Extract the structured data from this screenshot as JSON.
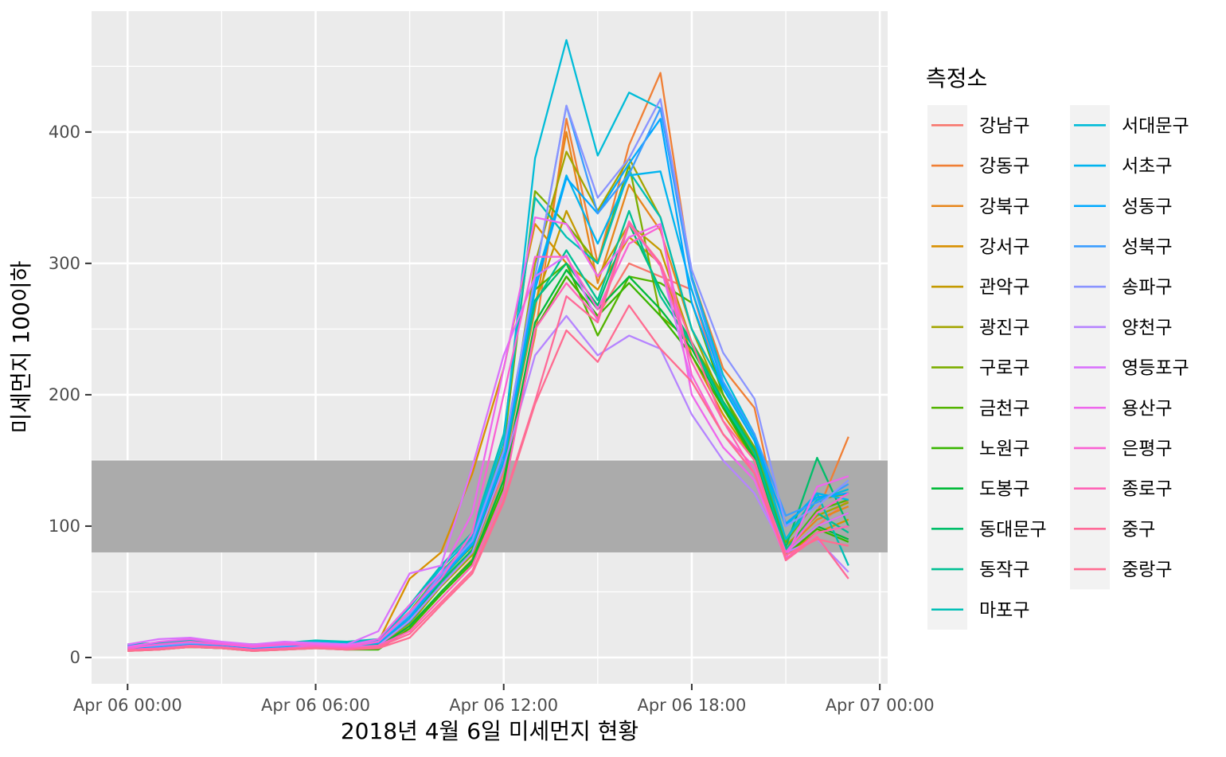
{
  "chart_data": {
    "type": "line",
    "title": "",
    "xlabel": "2018년 4월 6일 미세먼지 현황",
    "ylabel": "미세먼지 100이하",
    "ylim": [
      -20,
      492
    ],
    "xlim": [
      "2018-04-05 22:51",
      "2018-04-07 00:15"
    ],
    "x_ticks": [
      {
        "value": "2018-04-06 00:00",
        "label": "Apr 06 00:00"
      },
      {
        "value": "2018-04-06 06:00",
        "label": "Apr 06 06:00"
      },
      {
        "value": "2018-04-06 12:00",
        "label": "Apr 06 12:00"
      },
      {
        "value": "2018-04-06 18:00",
        "label": "Apr 06 18:00"
      },
      {
        "value": "2018-04-07 00:00",
        "label": "Apr 07 00:00"
      }
    ],
    "y_ticks": [
      0,
      100,
      200,
      300,
      400
    ],
    "band": {
      "ymin": 80,
      "ymax": 150,
      "color": "#ababab"
    },
    "grid": true,
    "legend_title": "측정소",
    "legend_position": "right",
    "x": [
      "2018-04-06 00:00",
      "2018-04-06 01:00",
      "2018-04-06 02:00",
      "2018-04-06 03:00",
      "2018-04-06 04:00",
      "2018-04-06 05:00",
      "2018-04-06 06:00",
      "2018-04-06 07:00",
      "2018-04-06 08:00",
      "2018-04-06 09:00",
      "2018-04-06 10:00",
      "2018-04-06 11:00",
      "2018-04-06 12:00",
      "2018-04-06 13:00",
      "2018-04-06 14:00",
      "2018-04-06 15:00",
      "2018-04-06 16:00",
      "2018-04-06 17:00",
      "2018-04-06 18:00",
      "2018-04-06 19:00",
      "2018-04-06 20:00",
      "2018-04-06 21:00",
      "2018-04-06 22:00",
      "2018-04-06 23:00"
    ],
    "series": [
      {
        "name": "강남구",
        "color": "#F8766D",
        "values": [
          7,
          8,
          10,
          9,
          7,
          8,
          9,
          8,
          10,
          25,
          55,
          80,
          140,
          250,
          290,
          260,
          300,
          290,
          280,
          200,
          160,
          80,
          100,
          120
        ]
      },
      {
        "name": "강동구",
        "color": "#F07F35",
        "values": [
          6,
          7,
          8,
          7,
          6,
          7,
          8,
          7,
          9,
          22,
          50,
          75,
          135,
          245,
          410,
          300,
          390,
          445,
          290,
          220,
          190,
          80,
          110,
          168
        ]
      },
      {
        "name": "강북구",
        "color": "#E7861B",
        "values": [
          8,
          9,
          10,
          9,
          8,
          9,
          10,
          9,
          11,
          28,
          60,
          85,
          145,
          265,
          400,
          285,
          360,
          325,
          250,
          205,
          165,
          82,
          105,
          115
        ]
      },
      {
        "name": "강서구",
        "color": "#D89000",
        "values": [
          9,
          10,
          12,
          10,
          9,
          10,
          11,
          10,
          12,
          60,
          80,
          140,
          220,
          330,
          300,
          280,
          320,
          300,
          230,
          185,
          150,
          78,
          95,
          105
        ]
      },
      {
        "name": "관악구",
        "color": "#C49A00",
        "values": [
          7,
          8,
          9,
          8,
          7,
          8,
          9,
          8,
          10,
          30,
          58,
          82,
          150,
          270,
          340,
          290,
          330,
          310,
          240,
          190,
          155,
          80,
          100,
          110
        ]
      },
      {
        "name": "광진구",
        "color": "#A3A500",
        "values": [
          6,
          7,
          9,
          8,
          6,
          7,
          8,
          7,
          9,
          26,
          54,
          78,
          145,
          300,
          385,
          340,
          380,
          335,
          250,
          195,
          160,
          85,
          108,
          118
        ]
      },
      {
        "name": "구로구",
        "color": "#7CAE00",
        "values": [
          10,
          11,
          13,
          11,
          10,
          11,
          12,
          11,
          13,
          35,
          65,
          90,
          160,
          355,
          330,
          300,
          375,
          260,
          240,
          200,
          160,
          88,
          120,
          125
        ]
      },
      {
        "name": "금천구",
        "color": "#53B400",
        "values": [
          9,
          10,
          12,
          10,
          9,
          10,
          11,
          10,
          12,
          30,
          60,
          85,
          150,
          280,
          300,
          245,
          290,
          285,
          270,
          200,
          155,
          82,
          112,
          120
        ]
      },
      {
        "name": "노원구",
        "color": "#39B600",
        "values": [
          5,
          6,
          8,
          7,
          5,
          6,
          7,
          6,
          6,
          22,
          48,
          72,
          130,
          250,
          290,
          260,
          285,
          260,
          230,
          190,
          150,
          78,
          98,
          88
        ]
      },
      {
        "name": "도봉구",
        "color": "#00BA38",
        "values": [
          6,
          7,
          8,
          7,
          6,
          7,
          8,
          7,
          8,
          24,
          50,
          74,
          135,
          255,
          295,
          265,
          290,
          265,
          235,
          192,
          152,
          80,
          100,
          90
        ]
      },
      {
        "name": "동대문구",
        "color": "#00BE6A",
        "values": [
          8,
          9,
          10,
          9,
          8,
          9,
          10,
          9,
          11,
          28,
          58,
          82,
          148,
          272,
          300,
          268,
          330,
          280,
          240,
          195,
          158,
          84,
          152,
          100
        ]
      },
      {
        "name": "동작구",
        "color": "#00C094",
        "values": [
          7,
          8,
          10,
          8,
          7,
          8,
          9,
          8,
          10,
          27,
          56,
          80,
          146,
          270,
          310,
          272,
          340,
          275,
          238,
          193,
          156,
          82,
          110,
          95
        ]
      },
      {
        "name": "마포구",
        "color": "#00BFB6",
        "values": [
          10,
          11,
          13,
          11,
          10,
          11,
          13,
          12,
          14,
          40,
          70,
          95,
          170,
          350,
          320,
          300,
          370,
          335,
          250,
          205,
          165,
          90,
          125,
          70
        ]
      },
      {
        "name": "서대문구",
        "color": "#00BCD8",
        "values": [
          9,
          10,
          12,
          10,
          9,
          10,
          12,
          11,
          13,
          38,
          68,
          92,
          165,
          380,
          470,
          382,
          430,
          418,
          290,
          215,
          170,
          90,
          120,
          128
        ]
      },
      {
        "name": "서초구",
        "color": "#00B4EF",
        "values": [
          8,
          9,
          11,
          10,
          8,
          9,
          11,
          10,
          12,
          32,
          62,
          88,
          155,
          285,
          367,
          315,
          367,
          370,
          280,
          208,
          168,
          100,
          125,
          120
        ]
      },
      {
        "name": "성동구",
        "color": "#00A9FF",
        "values": [
          7,
          8,
          10,
          9,
          7,
          8,
          10,
          9,
          11,
          30,
          60,
          86,
          150,
          280,
          365,
          338,
          376,
          410,
          270,
          205,
          165,
          102,
          122,
          125
        ]
      },
      {
        "name": "성북구",
        "color": "#3B9DFF",
        "values": [
          9,
          10,
          11,
          10,
          9,
          10,
          11,
          10,
          12,
          34,
          64,
          90,
          158,
          290,
          420,
          338,
          368,
          418,
          288,
          210,
          170,
          108,
          118,
          132
        ]
      },
      {
        "name": "송파구",
        "color": "#8A94FF",
        "values": [
          8,
          9,
          11,
          10,
          8,
          9,
          11,
          10,
          12,
          33,
          63,
          89,
          157,
          290,
          420,
          350,
          380,
          425,
          295,
          232,
          197,
          100,
          115,
          135
        ]
      },
      {
        "name": "양천구",
        "color": "#B684FF",
        "values": [
          6,
          7,
          9,
          8,
          6,
          7,
          9,
          8,
          9,
          28,
          55,
          80,
          145,
          230,
          260,
          230,
          245,
          235,
          185,
          150,
          125,
          80,
          90,
          65
        ]
      },
      {
        "name": "영등포구",
        "color": "#D973FC",
        "values": [
          10,
          14,
          15,
          12,
          10,
          12,
          11,
          10,
          20,
          64,
          70,
          145,
          230,
          290,
          306,
          256,
          330,
          298,
          210,
          170,
          140,
          80,
          100,
          110
        ]
      },
      {
        "name": "용산구",
        "color": "#EE67EC",
        "values": [
          8,
          12,
          14,
          11,
          9,
          11,
          10,
          9,
          14,
          40,
          65,
          110,
          220,
          335,
          330,
          290,
          320,
          330,
          200,
          160,
          135,
          75,
          130,
          138
        ]
      },
      {
        "name": "은평구",
        "color": "#FA62D3",
        "values": [
          7,
          10,
          12,
          10,
          8,
          10,
          9,
          8,
          12,
          35,
          60,
          95,
          200,
          305,
          305,
          265,
          315,
          328,
          215,
          170,
          145,
          80,
          110,
          125
        ]
      },
      {
        "name": "종로구",
        "color": "#FF63B6",
        "values": [
          6,
          7,
          9,
          8,
          6,
          7,
          8,
          7,
          9,
          20,
          45,
          70,
          125,
          250,
          285,
          258,
          332,
          298,
          225,
          180,
          140,
          75,
          95,
          100
        ]
      },
      {
        "name": "중구",
        "color": "#FF6A98",
        "values": [
          5,
          6,
          8,
          7,
          5,
          6,
          7,
          6,
          8,
          18,
          42,
          66,
          120,
          195,
          275,
          255,
          330,
          300,
          240,
          180,
          150,
          74,
          92,
          60
        ]
      },
      {
        "name": "중랑구",
        "color": "#FF6C91",
        "values": [
          5,
          6,
          8,
          7,
          5,
          6,
          7,
          6,
          7,
          15,
          40,
          64,
          118,
          193,
          249,
          225,
          268,
          235,
          210,
          170,
          140,
          78,
          90,
          85
        ]
      }
    ]
  }
}
